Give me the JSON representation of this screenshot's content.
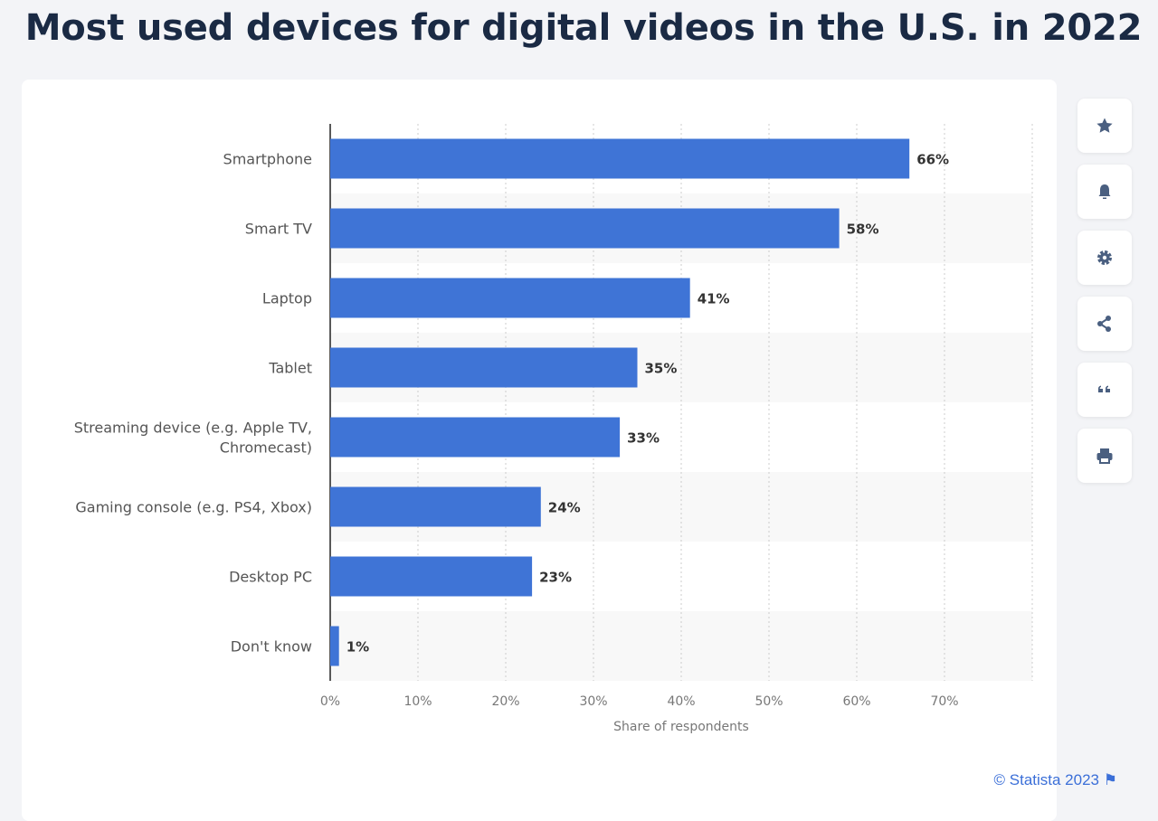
{
  "chart_data": {
    "type": "bar",
    "orientation": "horizontal",
    "title": "Most used devices for digital videos in the U.S. in 2022",
    "categories": [
      "Smartphone",
      "Smart TV",
      "Laptop",
      "Tablet",
      "Streaming device (e.g. Apple TV, Chromecast)",
      "Gaming console (e.g. PS4, Xbox)",
      "Desktop PC",
      "Don't know"
    ],
    "values": [
      66,
      58,
      41,
      35,
      33,
      24,
      23,
      1
    ],
    "value_labels": [
      "66%",
      "58%",
      "41%",
      "35%",
      "33%",
      "24%",
      "23%",
      "1%"
    ],
    "xlabel": "Share of respondents",
    "ylabel": "",
    "xlim": [
      0,
      80
    ],
    "xticks": [
      0,
      10,
      20,
      30,
      40,
      50,
      60,
      70
    ],
    "xtick_labels": [
      "0%",
      "10%",
      "20%",
      "30%",
      "40%",
      "50%",
      "60%",
      "70%"
    ],
    "grid": true,
    "bar_color": "#3f74d6"
  },
  "credit": "© Statista 2023",
  "sidebar": [
    "star-icon",
    "bell-icon",
    "gear-icon",
    "share-icon",
    "quote-icon",
    "print-icon"
  ]
}
